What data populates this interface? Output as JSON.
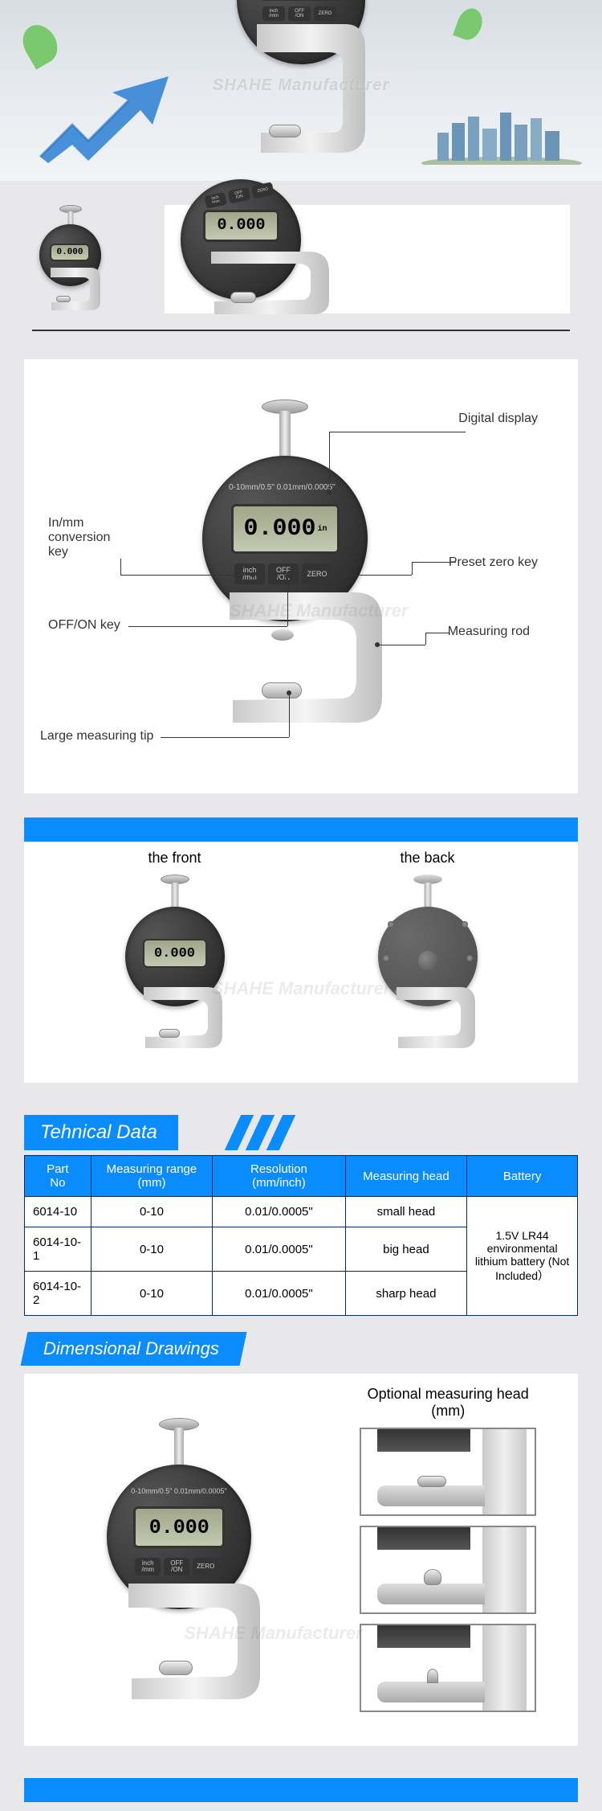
{
  "colors": {
    "accent": "#0a8cff",
    "border": "#0a2b5c",
    "page_bg": "#e8e8ea",
    "panel_bg": "#ffffff"
  },
  "watermark_text": "SHAHE Manufacturer",
  "gauge_device": {
    "range_text": "0-10mm/0.5\"  0.01mm/0.0005\"",
    "lcd_value": "0.000",
    "lcd_unit": "in",
    "buttons": {
      "mode": "inch\n/mm",
      "power": "OFF\n/ON",
      "zero": "ZERO"
    }
  },
  "two_shots": {
    "small_lcd": "0.000",
    "large_lcd": "0.000",
    "large_buttons_visible": true
  },
  "diagram": {
    "labels": {
      "digital_display": "Digital display",
      "preset_zero": "Preset zero key",
      "measuring_rod": "Measuring rod",
      "conversion_key": "In/mm\nconversion\nkey",
      "off_on": "OFF/ON key",
      "large_tip": "Large measuring tip"
    }
  },
  "front_back": {
    "front_title": "the front",
    "back_title": "the back",
    "front_lcd": "0.000"
  },
  "technical": {
    "section_title": "Tehnical Data",
    "columns": [
      {
        "header_l1": "Part",
        "header_l2": "No",
        "width": "12%"
      },
      {
        "header_l1": "Measuring range",
        "header_l2": "(mm)",
        "width": "22%"
      },
      {
        "header_l1": "Resolution",
        "header_l2": "(mm/inch)",
        "width": "24%"
      },
      {
        "header_l1": "Measuring head",
        "header_l2": "",
        "width": "22%"
      },
      {
        "header_l1": "Battery",
        "header_l2": "",
        "width": "20%"
      }
    ],
    "rows": [
      {
        "part": "6014-10",
        "range": "0-10",
        "res": "0.01/0.0005\"",
        "head": "small head"
      },
      {
        "part": "6014-10-1",
        "range": "0-10",
        "res": "0.01/0.0005\"",
        "head": "big head"
      },
      {
        "part": "6014-10-2",
        "range": "0-10",
        "res": "0.01/0.0005\"",
        "head": "sharp head"
      }
    ],
    "battery_text": "1.5V LR44 environmental lithium battery (Not Included）"
  },
  "dimensional": {
    "section_title": "Dimensional Drawings",
    "right_title_l1": "Optional measuring head",
    "right_title_l2": "(mm)",
    "heads": [
      {
        "name": "flat-head",
        "tip_shape": "flat"
      },
      {
        "name": "dome-head",
        "tip_shape": "dome"
      },
      {
        "name": "point-head",
        "tip_shape": "point"
      }
    ]
  }
}
